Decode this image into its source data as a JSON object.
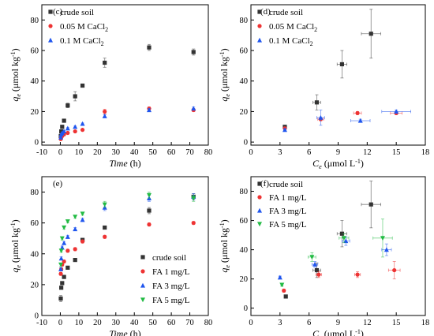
{
  "chart_data": [
    {
      "panel": "(c)",
      "type": "scatter",
      "xlabel": "Time",
      "xunit": "(h)",
      "ylabel": "q",
      "ysub": "e",
      "yunit": "(μmol kg",
      "xlim": [
        -10,
        80
      ],
      "ylim": [
        -2,
        90
      ],
      "xticks": [
        -10,
        0,
        10,
        20,
        30,
        40,
        50,
        60,
        70,
        80
      ],
      "yticks": [
        0,
        20,
        40,
        60,
        80
      ],
      "legend_position": "top-left",
      "series": [
        {
          "name": "crude soil",
          "marker": "square",
          "color": "#333333",
          "x": [
            0.25,
            0.5,
            1,
            2,
            4,
            8,
            12,
            24,
            48,
            72
          ],
          "y": [
            4,
            7,
            10,
            14,
            24,
            30,
            37,
            52,
            62,
            59
          ],
          "yerr": [
            1,
            1,
            1,
            1,
            1.5,
            3,
            1,
            3,
            2,
            2
          ]
        },
        {
          "name": "0.05 M CaCl2",
          "marker": "circle",
          "color": "#ee3333",
          "x": [
            0.25,
            0.5,
            1,
            2,
            4,
            8,
            12,
            24,
            48,
            72
          ],
          "y": [
            2,
            3,
            4,
            5,
            6,
            7,
            8,
            20,
            22,
            21
          ],
          "yerr": [
            0.5,
            0.5,
            0.5,
            0.5,
            0.5,
            0.5,
            0.5,
            1.5,
            1,
            1
          ]
        },
        {
          "name": "0.1 M CaCl2",
          "marker": "triangle",
          "color": "#1f55ee",
          "x": [
            0.25,
            0.5,
            1,
            2,
            4,
            8,
            12,
            24,
            48,
            72
          ],
          "y": [
            3,
            5,
            6,
            7,
            9,
            10,
            12,
            17,
            21,
            22
          ],
          "yerr": [
            0.5,
            0.5,
            0.5,
            0.5,
            0.5,
            0.5,
            0.5,
            1,
            1,
            1
          ]
        }
      ]
    },
    {
      "panel": "(d)",
      "type": "scatter",
      "xlabel": "C",
      "xsub": "e",
      "xunit": "(μmol L",
      "ylabel": "q",
      "ysub": "e",
      "yunit": "(μmol kg",
      "xlim": [
        0,
        18
      ],
      "ylim": [
        -2,
        90
      ],
      "xticks": [
        0,
        3,
        6,
        9,
        12,
        15,
        18
      ],
      "yticks": [
        0,
        20,
        40,
        60,
        80
      ],
      "legend_position": "top-left",
      "series": [
        {
          "name": "crude soil",
          "marker": "square",
          "color": "#333333",
          "x": [
            3.5,
            6.8,
            9.4,
            12.4
          ],
          "y": [
            10,
            26,
            51,
            71
          ],
          "xerr": [
            0.1,
            0.4,
            0.5,
            1.0
          ],
          "yerr": [
            1,
            5,
            9,
            16
          ]
        },
        {
          "name": "0.05 M CaCl2",
          "marker": "circle",
          "color": "#ee3333",
          "x": [
            3.5,
            7.2,
            11.0,
            15.0
          ],
          "y": [
            9,
            15,
            19,
            19
          ],
          "xerr": [
            0.1,
            0.3,
            0.4,
            0.6
          ],
          "yerr": [
            0.5,
            1,
            1,
            1
          ]
        },
        {
          "name": "0.1 M CaCl2",
          "marker": "triangle",
          "color": "#1f55ee",
          "x": [
            3.5,
            7.2,
            11.3,
            15.0
          ],
          "y": [
            8,
            16,
            14,
            20
          ],
          "xerr": [
            0.1,
            0.4,
            1.0,
            1.5
          ],
          "yerr": [
            0.5,
            5,
            1,
            1
          ]
        }
      ]
    },
    {
      "panel": "(e)",
      "type": "scatter",
      "xlabel": "Time",
      "xunit": "(h)",
      "ylabel": "q",
      "ysub": "e",
      "yunit": "(μmol kg",
      "xlim": [
        -10,
        80
      ],
      "ylim": [
        0,
        90
      ],
      "xticks": [
        -10,
        0,
        10,
        20,
        30,
        40,
        50,
        60,
        70,
        80
      ],
      "yticks": [
        0,
        20,
        40,
        60,
        80
      ],
      "legend_position": "bottom-right",
      "series": [
        {
          "name": "crude soil",
          "marker": "square",
          "color": "#333333",
          "x": [
            0.25,
            0.5,
            1,
            2,
            4,
            8,
            12,
            24,
            48,
            72
          ],
          "y": [
            11,
            18,
            21,
            25,
            31,
            36,
            49,
            57,
            68,
            77
          ],
          "yerr": [
            2,
            1,
            1,
            1,
            1,
            1,
            1,
            1,
            2,
            2
          ]
        },
        {
          "name": "FA 1 mg/L",
          "marker": "circle",
          "color": "#ee3333",
          "x": [
            0.25,
            0.5,
            1,
            2,
            4,
            8,
            12,
            24,
            48,
            72
          ],
          "y": [
            27,
            30,
            33,
            35,
            42,
            43,
            48,
            51,
            59,
            60
          ],
          "yerr": [
            1,
            1,
            1,
            1,
            1,
            1,
            1,
            1,
            1,
            1
          ]
        },
        {
          "name": "FA 3 mg/L",
          "marker": "triangle",
          "color": "#1f55ee",
          "x": [
            0.25,
            0.5,
            1,
            2,
            4,
            8,
            12,
            24,
            48,
            72
          ],
          "y": [
            30,
            37,
            44,
            47,
            51,
            56,
            62,
            70,
            76,
            77
          ],
          "yerr": [
            1,
            1,
            1,
            1,
            1,
            1,
            1,
            2,
            2,
            2
          ]
        },
        {
          "name": "FA 5 mg/L",
          "marker": "triangle-down",
          "color": "#22bb44",
          "x": [
            0.25,
            0.5,
            1,
            2,
            4,
            8,
            12,
            24,
            48,
            72
          ],
          "y": [
            33,
            42,
            50,
            57,
            61,
            64,
            66,
            72,
            78,
            76
          ],
          "yerr": [
            1,
            1,
            1,
            1,
            1,
            1,
            1,
            2,
            2,
            2
          ]
        }
      ]
    },
    {
      "panel": "(f)",
      "type": "scatter",
      "xlabel": "C",
      "xsub": "e",
      "xunit": "(μmol L",
      "ylabel": "q",
      "ysub": "e",
      "yunit": "(μmol kg",
      "xlim": [
        0,
        18
      ],
      "ylim": [
        -5,
        90
      ],
      "xticks": [
        0,
        3,
        6,
        9,
        12,
        15,
        18
      ],
      "yticks": [
        0,
        20,
        40,
        60,
        80
      ],
      "legend_position": "top-left",
      "series": [
        {
          "name": "crude soil",
          "marker": "square",
          "color": "#333333",
          "x": [
            3.6,
            6.8,
            9.4,
            12.4
          ],
          "y": [
            8,
            26,
            51,
            71
          ],
          "xerr": [
            0.1,
            0.4,
            0.5,
            1.0
          ],
          "yerr": [
            1,
            5,
            9,
            16
          ]
        },
        {
          "name": "FA 1 mg/L",
          "marker": "circle",
          "color": "#ee3333",
          "x": [
            3.4,
            7.0,
            11.0,
            14.8
          ],
          "y": [
            12,
            23,
            23,
            26
          ],
          "xerr": [
            0.1,
            0.3,
            0.3,
            0.6
          ],
          "yerr": [
            1,
            2,
            2,
            6
          ]
        },
        {
          "name": "FA 3 mg/L",
          "marker": "triangle",
          "color": "#1f55ee",
          "x": [
            3.0,
            6.6,
            9.8,
            14.0
          ],
          "y": [
            21,
            30,
            46,
            40
          ],
          "xerr": [
            0.1,
            0.3,
            0.4,
            0.5
          ],
          "yerr": [
            1,
            2,
            3,
            4
          ]
        },
        {
          "name": "FA 5 mg/L",
          "marker": "triangle-down",
          "color": "#22bb44",
          "x": [
            3.2,
            6.3,
            9.6,
            13.6
          ],
          "y": [
            16,
            35,
            48,
            48
          ],
          "xerr": [
            0.1,
            0.4,
            0.5,
            1.0
          ],
          "yerr": [
            1,
            3,
            3,
            13
          ]
        }
      ]
    }
  ]
}
